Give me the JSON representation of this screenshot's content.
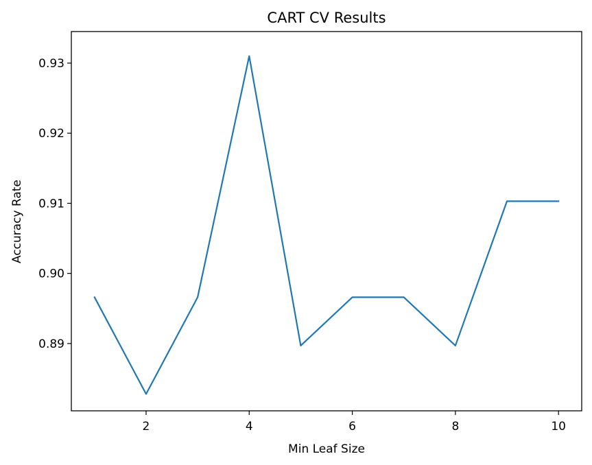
{
  "chart_data": {
    "type": "line",
    "title": "CART CV Results",
    "xlabel": "Min Leaf Size",
    "ylabel": "Accuracy Rate",
    "x": [
      1,
      2,
      3,
      4,
      5,
      6,
      7,
      8,
      9,
      10
    ],
    "series": [
      {
        "values": [
          0.8966,
          0.8828,
          0.8966,
          0.931,
          0.8897,
          0.8966,
          0.8966,
          0.8897,
          0.9103,
          0.9103
        ],
        "color": "#1f77b4"
      }
    ],
    "xlim": [
      0.55,
      10.45
    ],
    "ylim": [
      0.8804,
      0.9345
    ],
    "xticks": [
      2,
      4,
      6,
      8,
      10
    ],
    "xtick_labels": [
      "2",
      "4",
      "6",
      "8",
      "10"
    ],
    "yticks": [
      0.89,
      0.9,
      0.91,
      0.92,
      0.93
    ],
    "ytick_labels": [
      "0.89",
      "0.90",
      "0.91",
      "0.92",
      "0.93"
    ],
    "grid": false,
    "legend": "none"
  }
}
